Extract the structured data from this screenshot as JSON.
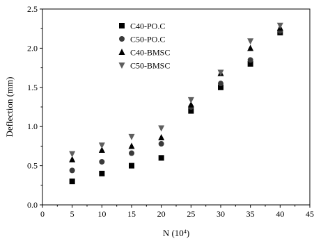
{
  "chart_data": {
    "type": "scatter",
    "xlabel": "N (10",
    "xlabel_sup": "4",
    "xlabel_suffix": ")",
    "ylabel": "Deflection (mm)",
    "xlim": [
      0,
      45
    ],
    "ylim": [
      0.0,
      2.5
    ],
    "xticks": [
      "0",
      "5",
      "10",
      "15",
      "20",
      "25",
      "30",
      "35",
      "40",
      "45"
    ],
    "yticks": [
      "0.0",
      "0.5",
      "1.0",
      "1.5",
      "2.0",
      "2.5"
    ],
    "grid": false,
    "legend_position": "top-left",
    "x": [
      5,
      10,
      15,
      20,
      25,
      30,
      35,
      40
    ],
    "series": [
      {
        "name": "C40-PO.C",
        "marker": "square",
        "color": "#000000",
        "values": [
          0.3,
          0.4,
          0.5,
          0.6,
          1.2,
          1.5,
          1.8,
          2.2
        ]
      },
      {
        "name": "C50-PO.C",
        "marker": "circle",
        "color": "#3a3a3a",
        "values": [
          0.44,
          0.55,
          0.66,
          0.78,
          1.25,
          1.55,
          1.85,
          2.22
        ]
      },
      {
        "name": "C40-BMSC",
        "marker": "triangle-up",
        "color": "#000000",
        "values": [
          0.58,
          0.7,
          0.75,
          0.86,
          1.28,
          1.68,
          2.0,
          2.26
        ]
      },
      {
        "name": "C50-BMSC",
        "marker": "triangle-down",
        "color": "#5e5e5e",
        "values": [
          0.65,
          0.76,
          0.87,
          0.98,
          1.34,
          1.69,
          2.09,
          2.29
        ]
      }
    ]
  }
}
